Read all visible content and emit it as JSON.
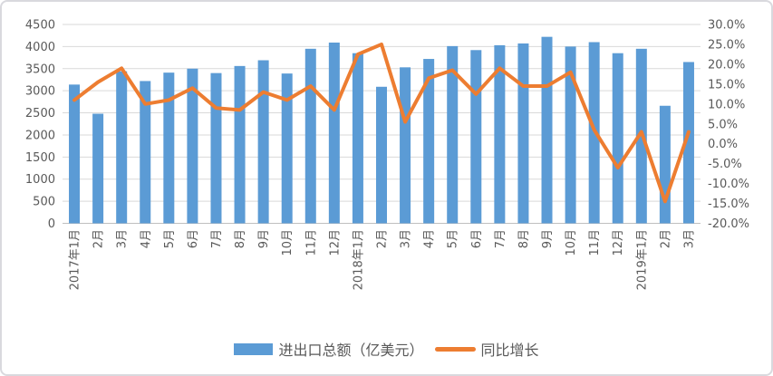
{
  "chart_data": {
    "type": "combo-bar-line",
    "categories": [
      "2017年1月",
      "2月",
      "3月",
      "4月",
      "5月",
      "6月",
      "7月",
      "8月",
      "9月",
      "10月",
      "11月",
      "12月",
      "2018年1月",
      "2月",
      "3月",
      "4月",
      "5月",
      "6月",
      "7月",
      "8月",
      "9月",
      "10月",
      "11月",
      "12月",
      "2019年1月",
      "2月",
      "3月"
    ],
    "series": [
      {
        "name": "进出口总额（亿美元）",
        "type": "bar",
        "axis": "left",
        "color": "#5B9BD5",
        "values": [
          3140,
          2480,
          3440,
          3220,
          3410,
          3500,
          3400,
          3560,
          3690,
          3390,
          3950,
          4090,
          3850,
          3090,
          3530,
          3720,
          4010,
          3920,
          4030,
          4070,
          4220,
          4000,
          4100,
          3850,
          3950,
          2660,
          3650
        ]
      },
      {
        "name": "同比增长",
        "type": "line",
        "axis": "right",
        "color": "#ED7D31",
        "values_percent": [
          11.0,
          15.5,
          19.0,
          10.0,
          11.0,
          14.0,
          9.0,
          8.5,
          13.0,
          11.0,
          14.5,
          8.5,
          22.5,
          25.0,
          5.5,
          16.5,
          18.5,
          12.5,
          19.0,
          14.5,
          14.5,
          18.0,
          3.5,
          -6.0,
          3.0,
          -14.5,
          3.0
        ]
      }
    ],
    "left_axis": {
      "min": 0,
      "max": 4500,
      "step": 500,
      "tick_labels": [
        "4500",
        "4000",
        "3500",
        "3000",
        "2500",
        "2000",
        "1500",
        "1000",
        "500",
        "0"
      ]
    },
    "right_axis": {
      "min": -20,
      "max": 30,
      "step": 5,
      "tick_labels": [
        "30.0%",
        "25.0%",
        "20.0%",
        "15.0%",
        "10.0%",
        "5.0%",
        "0.0%",
        "-5.0%",
        "-10.0%",
        "-15.0%",
        "-20.0%"
      ]
    },
    "grid": true,
    "legend_position": "bottom",
    "colors": {
      "grid": "#D9D9D9",
      "axis_line": "#BFBFBF",
      "axis_text": "#595959",
      "background": "#FFFFFF"
    }
  }
}
